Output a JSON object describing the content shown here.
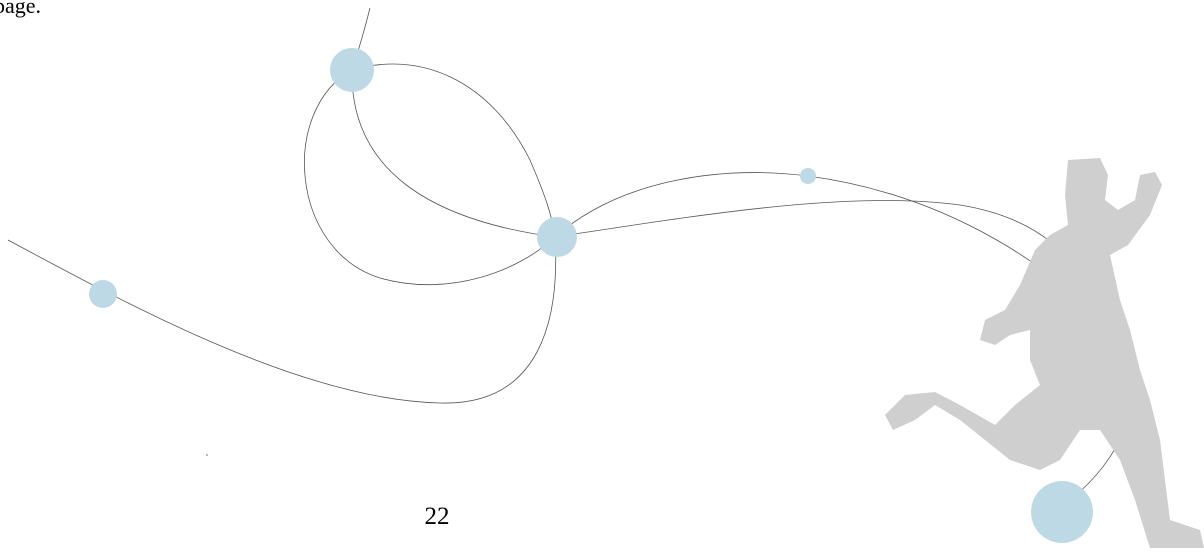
{
  "header": {
    "text": "page."
  },
  "footer": {
    "page_number": "22"
  }
}
